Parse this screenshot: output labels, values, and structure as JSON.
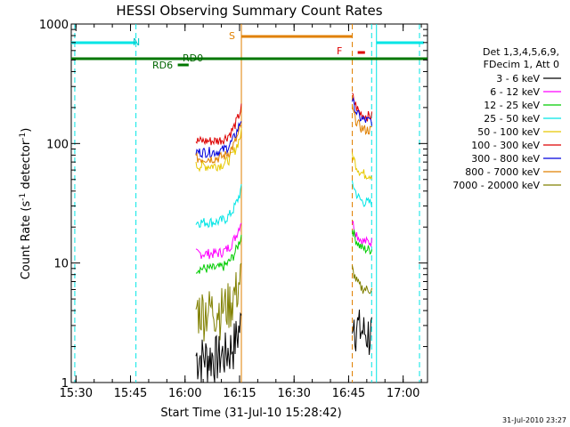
{
  "chart_data": {
    "type": "line",
    "title": "HESSI Observing Summary Count Rates",
    "xlabel": "Start Time (31-Jul-10 15:28:42)",
    "ylabel_main": "Count Rate (s",
    "ylabel_sup1": "-1",
    "ylabel_mid": " detector",
    "ylabel_sup2": "-1",
    "ylabel_end": ")",
    "yscale": "log",
    "ylim": [
      1,
      1000
    ],
    "xlim_minutes_since_1528": [
      0,
      98
    ],
    "x_ticks": [
      "15:30",
      "15:45",
      "16:00",
      "16:15",
      "16:30",
      "16:45",
      "17:00"
    ],
    "y_ticks": [
      "1",
      "10",
      "100",
      "1000"
    ],
    "legend": {
      "placement": "right",
      "header": [
        "Det 1,3,4,5,6,9,",
        "FDecim 1, Att 0"
      ],
      "entries": [
        {
          "label": "3 - 6 keV",
          "color": "#000000"
        },
        {
          "label": "6 - 12 keV",
          "color": "#ff00ff"
        },
        {
          "label": "12 - 25 keV",
          "color": "#00cc00"
        },
        {
          "label": "25 - 50 keV",
          "color": "#00e5e5"
        },
        {
          "label": "50 - 100 keV",
          "color": "#e6c800"
        },
        {
          "label": "100 - 300 keV",
          "color": "#dd0000"
        },
        {
          "label": "300 - 800 keV",
          "color": "#0000dd"
        },
        {
          "label": "800 - 7000 keV",
          "color": "#e08000"
        },
        {
          "label": "7000 - 20000 keV",
          "color": "#808000"
        }
      ]
    },
    "annotations": {
      "N": "N",
      "S": "S",
      "F": "F",
      "RD0": "RD0",
      "RD6": "RD6"
    },
    "segments": [
      {
        "start": "16:03",
        "end": "16:15:30"
      },
      {
        "start": "16:46",
        "end": "16:51:30"
      }
    ],
    "series_levels_seg1": {
      "3 - 6 keV": 1.6,
      "6 - 12 keV": 12,
      "12 - 25 keV": 9,
      "25 - 50 keV": 22,
      "50 - 100 keV": 65,
      "100 - 300 keV": 105,
      "300 - 800 keV": 85,
      "800 - 7000 keV": 75,
      "7000 - 20000 keV": 4
    },
    "series_levels_seg2": {
      "3 - 6 keV": 2.5,
      "6 - 12 keV": 15,
      "12 - 25 keV": 13,
      "25 - 50 keV": 32,
      "50 - 100 keV": 55,
      "100 - 300 keV": 170,
      "300 - 800 keV": 155,
      "800 - 7000 keV": 130,
      "7000 - 20000 keV": 6
    },
    "footer_date": "31-Jul-2010 23:27"
  }
}
